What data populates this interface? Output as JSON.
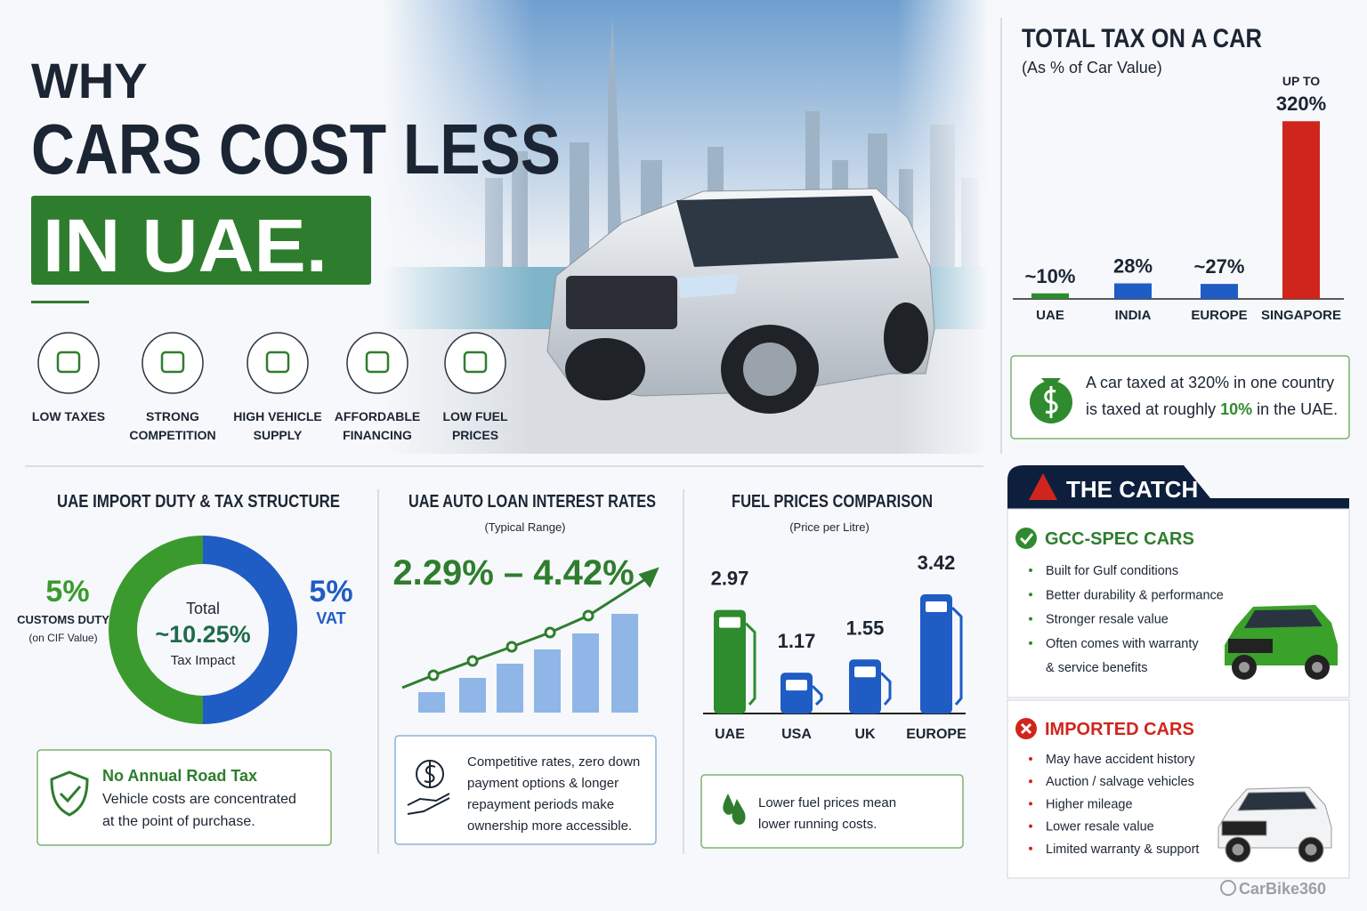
{
  "header": {
    "line1": "WHY",
    "line2": "CARS COST LESS",
    "line3": "IN UAE."
  },
  "reasons": [
    [
      "LOW TAXES"
    ],
    [
      "STRONG",
      "COMPETITION"
    ],
    [
      "HIGH VEHICLE",
      "SUPPLY"
    ],
    [
      "AFFORDABLE",
      "FINANCING"
    ],
    [
      "LOW FUEL",
      "PRICES"
    ]
  ],
  "tax_chart": {
    "title": "TOTAL TAX ON A CAR",
    "subtitle": "(As % of Car Value)",
    "categories": [
      "UAE",
      "INDIA",
      "EUROPE",
      "SINGAPORE"
    ],
    "values": [
      10,
      28,
      27,
      320
    ],
    "value_labels": [
      "~10%",
      "28%",
      "~27%",
      "320%"
    ],
    "value_prefixes": [
      null,
      null,
      null,
      "UP TO"
    ],
    "colors": [
      "#2e8b2e",
      "#1f5cc4",
      "#1f5cc4",
      "#d0251c"
    ],
    "ylim": [
      0,
      330
    ]
  },
  "tax_note": {
    "line1": "A car taxed at 320% in one country",
    "line2_before": "is taxed at roughly ",
    "line2_highlight": "10%",
    "line2_after": " in the UAE."
  },
  "duty": {
    "title": "UAE IMPORT DUTY & TAX STRUCTURE",
    "segments": [
      {
        "value": 5,
        "value_label": "5%",
        "label": "CUSTOMS DUTY",
        "note": "(on CIF Value)",
        "color": "#3a9a2e"
      },
      {
        "value": 5,
        "value_label": "5%",
        "label": "VAT",
        "color": "#1f5cc4"
      }
    ],
    "center_label": "Total",
    "center_value": "~10.25%",
    "center_note": "Tax Impact"
  },
  "road_tax": {
    "title": "No Annual Road Tax",
    "lines": [
      "Vehicle costs are concentrated",
      "at the point of purchase."
    ]
  },
  "loan": {
    "title": "UAE AUTO LOAN INTEREST RATES",
    "subtitle": "(Typical Range)",
    "range": "2.29% – 4.42%",
    "lines": [
      "Competitive rates, zero down",
      "payment options & longer",
      "repayment periods make",
      "ownership more accessible."
    ]
  },
  "fuel_chart": {
    "title": "FUEL PRICES COMPARISON",
    "subtitle": "(Price per Litre)",
    "categories": [
      "UAE",
      "USA",
      "UK",
      "EUROPE"
    ],
    "values": [
      2.97,
      1.17,
      1.55,
      3.42
    ],
    "colors": [
      "#2e8b2e",
      "#1f5cc4",
      "#1f5cc4",
      "#1f5cc4"
    ],
    "ylim": [
      0,
      3.6
    ]
  },
  "fuel_note": {
    "lines": [
      "Lower fuel prices mean",
      "lower running costs."
    ]
  },
  "catch": {
    "title": "THE CATCH",
    "gcc": {
      "title": "GCC-SPEC CARS",
      "items": [
        [
          "Built for Gulf conditions"
        ],
        [
          "Better durability & performance"
        ],
        [
          "Stronger resale value"
        ],
        [
          "Often comes with warranty",
          "& service benefits"
        ]
      ]
    },
    "imported": {
      "title": "IMPORTED CARS",
      "items": [
        [
          "May have accident history"
        ],
        [
          "Auction / salvage vehicles"
        ],
        [
          "Higher mileage"
        ],
        [
          "Lower resale value"
        ],
        [
          "Limited warranty & support"
        ]
      ]
    }
  },
  "watermark": "CarBike360"
}
